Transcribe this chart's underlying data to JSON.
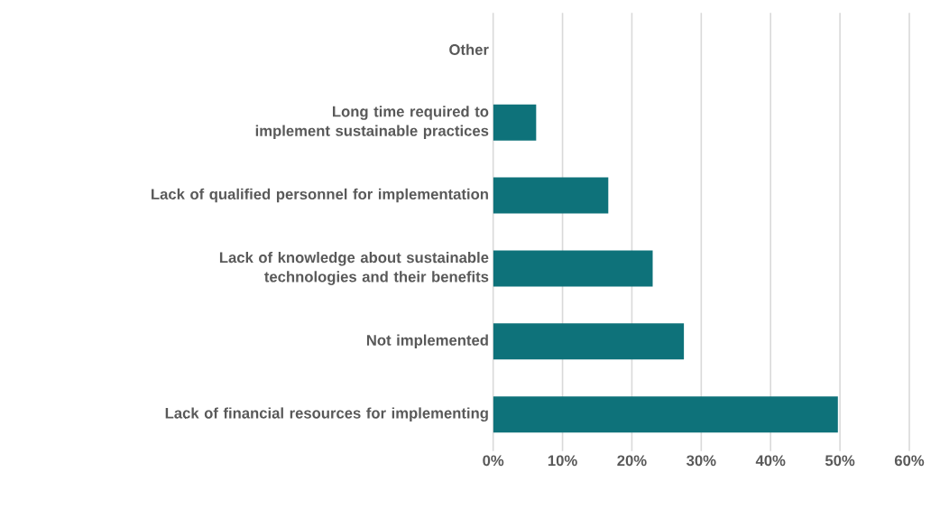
{
  "chart_data": {
    "type": "bar",
    "orientation": "horizontal",
    "categories": [
      "Other",
      "Long time required to implement sustainable practices",
      "Lack of qualified personnel for implementation",
      "Lack of knowledge about sustainable technologies and their benefits",
      "Not implemented",
      "Lack of financial resources for implementing"
    ],
    "values": [
      0,
      6.2,
      16.6,
      23,
      27.5,
      49.7
    ],
    "color": "#0e727a",
    "xlim": [
      0,
      60
    ],
    "xticks": [
      {
        "value": 0,
        "label": "0%"
      },
      {
        "value": 10,
        "label": "10%"
      },
      {
        "value": 20,
        "label": "20%"
      },
      {
        "value": 30,
        "label": "30%"
      },
      {
        "value": 40,
        "label": "40%"
      },
      {
        "value": 50,
        "label": "50%"
      },
      {
        "value": 60,
        "label": "60%"
      }
    ],
    "grid": "x"
  }
}
